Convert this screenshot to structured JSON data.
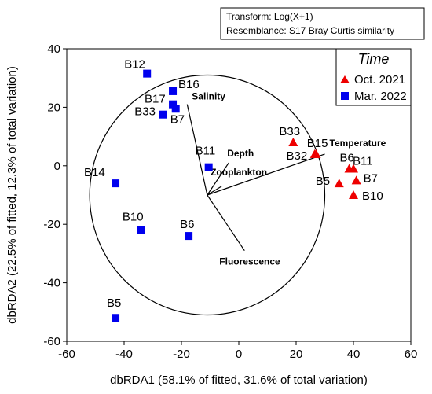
{
  "chart_data": {
    "type": "scatter",
    "info_lines": [
      "Transform: Log(X+1)",
      "Resemblance: S17 Bray Curtis similarity"
    ],
    "xlabel": "dbRDA1 (58.1% of fitted, 31.6% of total variation)",
    "ylabel": "dbRDA2 (22.5% of fitted, 12.3% of total variation)",
    "xlim": [
      -60,
      60
    ],
    "ylim": [
      -60,
      40
    ],
    "xticks": [
      -60,
      -40,
      -20,
      0,
      20,
      40,
      60
    ],
    "yticks": [
      -60,
      -40,
      -20,
      0,
      20,
      40
    ],
    "legend": {
      "title": "Time",
      "placement": "top-right"
    },
    "series": [
      {
        "name": "Oct. 2021",
        "marker": "triangle",
        "color": "#ee0000",
        "points": [
          {
            "label": "B33",
            "x": 19,
            "y": 8
          },
          {
            "label": "B15",
            "x": 26.5,
            "y": 4
          },
          {
            "label": "B32",
            "x": 27,
            "y": 4
          },
          {
            "label": "B6",
            "x": 38.5,
            "y": -1
          },
          {
            "label": "B11",
            "x": 40,
            "y": -1
          },
          {
            "label": "B5",
            "x": 35,
            "y": -6
          },
          {
            "label": "B7",
            "x": 41,
            "y": -5
          },
          {
            "label": "B10",
            "x": 40,
            "y": -10
          }
        ]
      },
      {
        "name": "Mar. 2022",
        "marker": "square",
        "color": "#0000ee",
        "points": [
          {
            "label": "B12",
            "x": -32,
            "y": 31.5
          },
          {
            "label": "B16",
            "x": -23,
            "y": 25.5
          },
          {
            "label": "B17",
            "x": -23,
            "y": 21
          },
          {
            "label": "B33",
            "x": -26.5,
            "y": 17.5
          },
          {
            "label": "B7",
            "x": -22,
            "y": 19.5
          },
          {
            "label": "B11",
            "x": -10.5,
            "y": -0.5
          },
          {
            "label": "B14",
            "x": -43,
            "y": -6
          },
          {
            "label": "B10",
            "x": -34,
            "y": -22
          },
          {
            "label": "B6",
            "x": -17.5,
            "y": -24
          },
          {
            "label": "B5",
            "x": -43,
            "y": -52
          }
        ]
      }
    ],
    "circle": {
      "center": [
        -11,
        -10
      ],
      "radius": 41
    },
    "vectors": [
      {
        "name": "Salinity",
        "end": [
          -18,
          21
        ]
      },
      {
        "name": "Depth",
        "end": [
          -3.5,
          1
        ]
      },
      {
        "name": "Zooplankton",
        "end": [
          -6,
          -7
        ]
      },
      {
        "name": "Temperature",
        "end": [
          30,
          4
        ]
      },
      {
        "name": "Fluorescence",
        "end": [
          2,
          -29
        ]
      }
    ]
  }
}
